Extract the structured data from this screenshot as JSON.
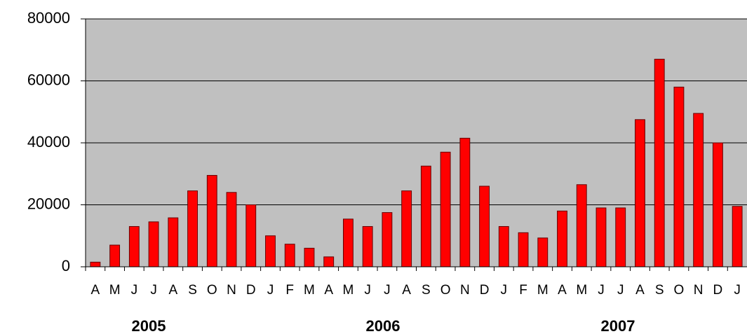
{
  "chart_data": {
    "type": "bar",
    "categories": [
      "A",
      "M",
      "J",
      "J",
      "A",
      "S",
      "O",
      "N",
      "D",
      "J",
      "F",
      "M",
      "A",
      "M",
      "J",
      "J",
      "A",
      "S",
      "O",
      "N",
      "D",
      "J",
      "F",
      "M",
      "A",
      "M",
      "J",
      "J",
      "A",
      "S",
      "O",
      "N",
      "D",
      "J"
    ],
    "values": [
      1500,
      7000,
      13000,
      14500,
      15800,
      24500,
      29500,
      24000,
      20000,
      10000,
      7300,
      6000,
      3200,
      15400,
      13000,
      17500,
      24500,
      32500,
      37000,
      41500,
      26000,
      13000,
      11000,
      9300,
      18000,
      26500,
      19000,
      19000,
      47500,
      67000,
      58000,
      49500,
      40000,
      19500
    ],
    "color": "#ff0000",
    "year_labels": [
      "2005",
      "2006",
      "2007"
    ],
    "ylim": [
      0,
      80000
    ],
    "yticks": [
      0,
      20000,
      40000,
      60000,
      80000
    ],
    "grid": true
  }
}
